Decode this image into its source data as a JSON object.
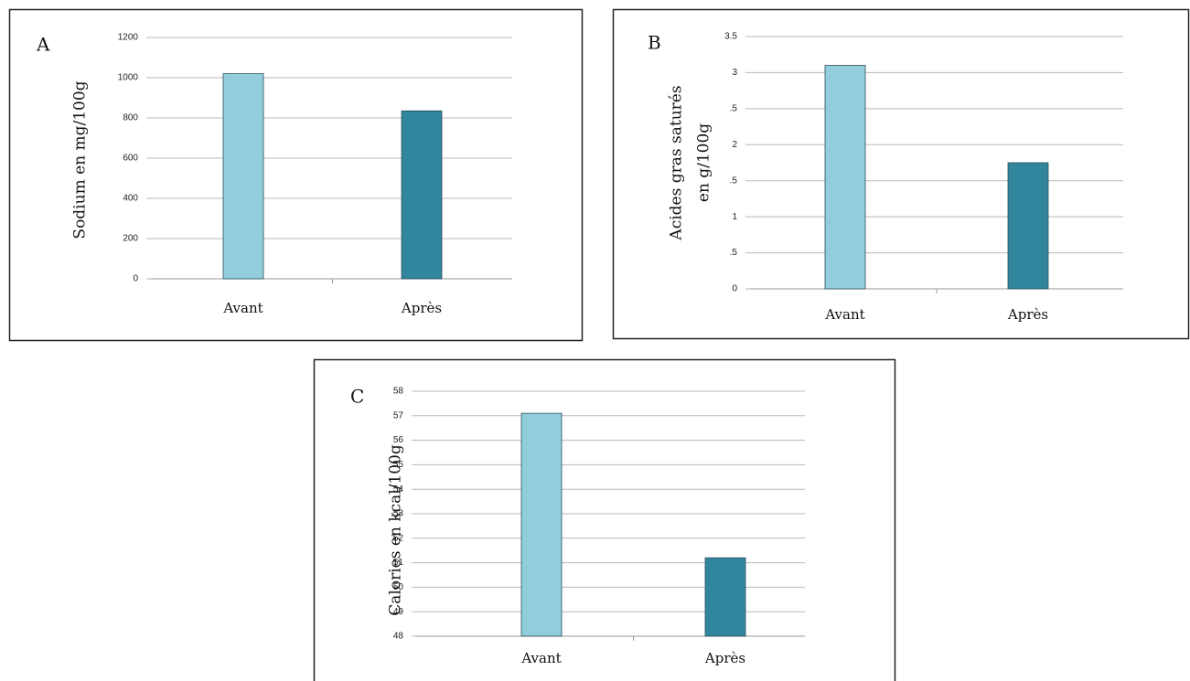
{
  "chart_data": [
    {
      "type": "bar",
      "panel": "A",
      "ylabel": [
        "Sodium en mg/100g"
      ],
      "categories": [
        "Avant",
        "Après"
      ],
      "values": [
        1020,
        835
      ],
      "colors": [
        "#92cddc",
        "#31859c"
      ],
      "ylim": [
        0,
        1200
      ],
      "yticks": [
        0,
        200,
        400,
        600,
        800,
        1000,
        1200
      ],
      "grid": true
    },
    {
      "type": "bar",
      "panel": "B",
      "ylabel": [
        "Acides gras saturés",
        "en g/100g"
      ],
      "categories": [
        "Avant",
        "Après"
      ],
      "values": [
        3.1,
        1.75
      ],
      "colors": [
        "#92cddc",
        "#31859c"
      ],
      "ylim": [
        0,
        3.5
      ],
      "yticks": [
        0,
        {
          "value": 0.5,
          "label": ".5"
        },
        1,
        {
          "value": 1.5,
          "label": ".5"
        },
        2,
        {
          "value": 2.5,
          "label": ".5"
        },
        3,
        3.5
      ],
      "grid": true
    },
    {
      "type": "bar",
      "panel": "C",
      "ylabel": [
        "Calories en kcal/100g"
      ],
      "categories": [
        "Avant",
        "Après"
      ],
      "values": [
        57.1,
        51.2
      ],
      "colors": [
        "#92cddc",
        "#31859c"
      ],
      "ylim": [
        48,
        58
      ],
      "yticks": [
        48,
        49,
        50,
        51,
        52,
        53,
        54,
        55,
        56,
        57,
        58
      ],
      "grid": true
    }
  ]
}
